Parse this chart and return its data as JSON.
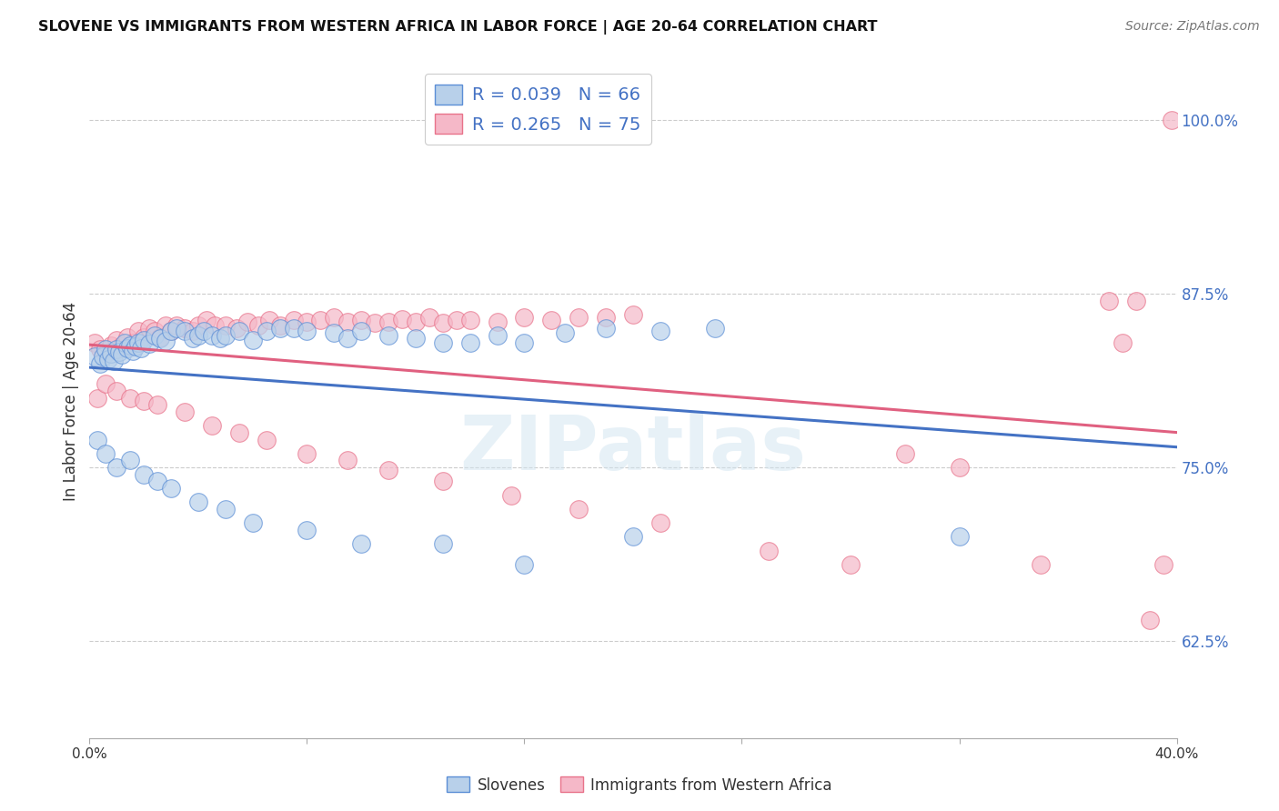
{
  "title": "SLOVENE VS IMMIGRANTS FROM WESTERN AFRICA IN LABOR FORCE | AGE 20-64 CORRELATION CHART",
  "source": "Source: ZipAtlas.com",
  "ylabel": "In Labor Force | Age 20-64",
  "xlim": [
    0.0,
    0.4
  ],
  "ylim": [
    0.555,
    1.04
  ],
  "xticks": [
    0.0,
    0.08,
    0.16,
    0.24,
    0.32,
    0.4
  ],
  "xticklabels": [
    "0.0%",
    "",
    "",
    "",
    "",
    "40.0%"
  ],
  "yticks": [
    0.625,
    0.75,
    0.875,
    1.0
  ],
  "yticklabels": [
    "62.5%",
    "75.0%",
    "87.5%",
    "100.0%"
  ],
  "legend_labels": [
    "Slovenes",
    "Immigrants from Western Africa"
  ],
  "blue_R": "0.039",
  "blue_N": "66",
  "pink_R": "0.265",
  "pink_N": "75",
  "blue_fill": "#b8d0ea",
  "pink_fill": "#f5b8c8",
  "blue_edge": "#5b8ed6",
  "pink_edge": "#e8728a",
  "blue_line": "#4472c4",
  "pink_line": "#e06080",
  "watermark": "ZIPatlas",
  "blue_scatter_x": [
    0.002,
    0.004,
    0.005,
    0.006,
    0.007,
    0.008,
    0.009,
    0.01,
    0.011,
    0.012,
    0.013,
    0.014,
    0.015,
    0.016,
    0.017,
    0.018,
    0.019,
    0.02,
    0.022,
    0.024,
    0.026,
    0.028,
    0.03,
    0.032,
    0.035,
    0.038,
    0.04,
    0.042,
    0.045,
    0.048,
    0.05,
    0.055,
    0.06,
    0.065,
    0.07,
    0.075,
    0.08,
    0.09,
    0.095,
    0.1,
    0.11,
    0.12,
    0.13,
    0.14,
    0.15,
    0.16,
    0.175,
    0.19,
    0.21,
    0.23,
    0.003,
    0.006,
    0.01,
    0.015,
    0.02,
    0.025,
    0.03,
    0.04,
    0.05,
    0.06,
    0.08,
    0.1,
    0.13,
    0.16,
    0.2,
    0.32
  ],
  "blue_scatter_y": [
    0.83,
    0.825,
    0.83,
    0.835,
    0.828,
    0.832,
    0.827,
    0.835,
    0.833,
    0.831,
    0.84,
    0.836,
    0.838,
    0.834,
    0.837,
    0.84,
    0.836,
    0.842,
    0.839,
    0.845,
    0.843,
    0.841,
    0.848,
    0.85,
    0.848,
    0.843,
    0.845,
    0.848,
    0.845,
    0.843,
    0.845,
    0.848,
    0.842,
    0.848,
    0.85,
    0.85,
    0.848,
    0.847,
    0.843,
    0.848,
    0.845,
    0.843,
    0.84,
    0.84,
    0.845,
    0.84,
    0.847,
    0.85,
    0.848,
    0.85,
    0.77,
    0.76,
    0.75,
    0.755,
    0.745,
    0.74,
    0.735,
    0.725,
    0.72,
    0.71,
    0.705,
    0.695,
    0.695,
    0.68,
    0.7,
    0.7
  ],
  "pink_scatter_x": [
    0.002,
    0.004,
    0.006,
    0.008,
    0.01,
    0.012,
    0.014,
    0.016,
    0.018,
    0.02,
    0.022,
    0.024,
    0.026,
    0.028,
    0.03,
    0.032,
    0.035,
    0.038,
    0.04,
    0.043,
    0.046,
    0.05,
    0.054,
    0.058,
    0.062,
    0.066,
    0.07,
    0.075,
    0.08,
    0.085,
    0.09,
    0.095,
    0.1,
    0.105,
    0.11,
    0.115,
    0.12,
    0.125,
    0.13,
    0.135,
    0.14,
    0.15,
    0.16,
    0.17,
    0.18,
    0.19,
    0.2,
    0.003,
    0.006,
    0.01,
    0.015,
    0.02,
    0.025,
    0.035,
    0.045,
    0.055,
    0.065,
    0.08,
    0.095,
    0.11,
    0.13,
    0.155,
    0.18,
    0.21,
    0.25,
    0.28,
    0.3,
    0.32,
    0.35,
    0.375,
    0.38,
    0.385,
    0.39,
    0.395,
    0.398
  ],
  "pink_scatter_y": [
    0.84,
    0.835,
    0.832,
    0.838,
    0.842,
    0.838,
    0.844,
    0.84,
    0.848,
    0.844,
    0.85,
    0.848,
    0.844,
    0.852,
    0.848,
    0.852,
    0.85,
    0.848,
    0.852,
    0.856,
    0.852,
    0.852,
    0.85,
    0.855,
    0.852,
    0.856,
    0.852,
    0.856,
    0.855,
    0.856,
    0.858,
    0.855,
    0.856,
    0.854,
    0.855,
    0.857,
    0.855,
    0.858,
    0.854,
    0.856,
    0.856,
    0.855,
    0.858,
    0.856,
    0.858,
    0.858,
    0.86,
    0.8,
    0.81,
    0.805,
    0.8,
    0.798,
    0.795,
    0.79,
    0.78,
    0.775,
    0.77,
    0.76,
    0.755,
    0.748,
    0.74,
    0.73,
    0.72,
    0.71,
    0.69,
    0.68,
    0.76,
    0.75,
    0.68,
    0.87,
    0.84,
    0.87,
    0.64,
    0.68,
    1.0
  ]
}
